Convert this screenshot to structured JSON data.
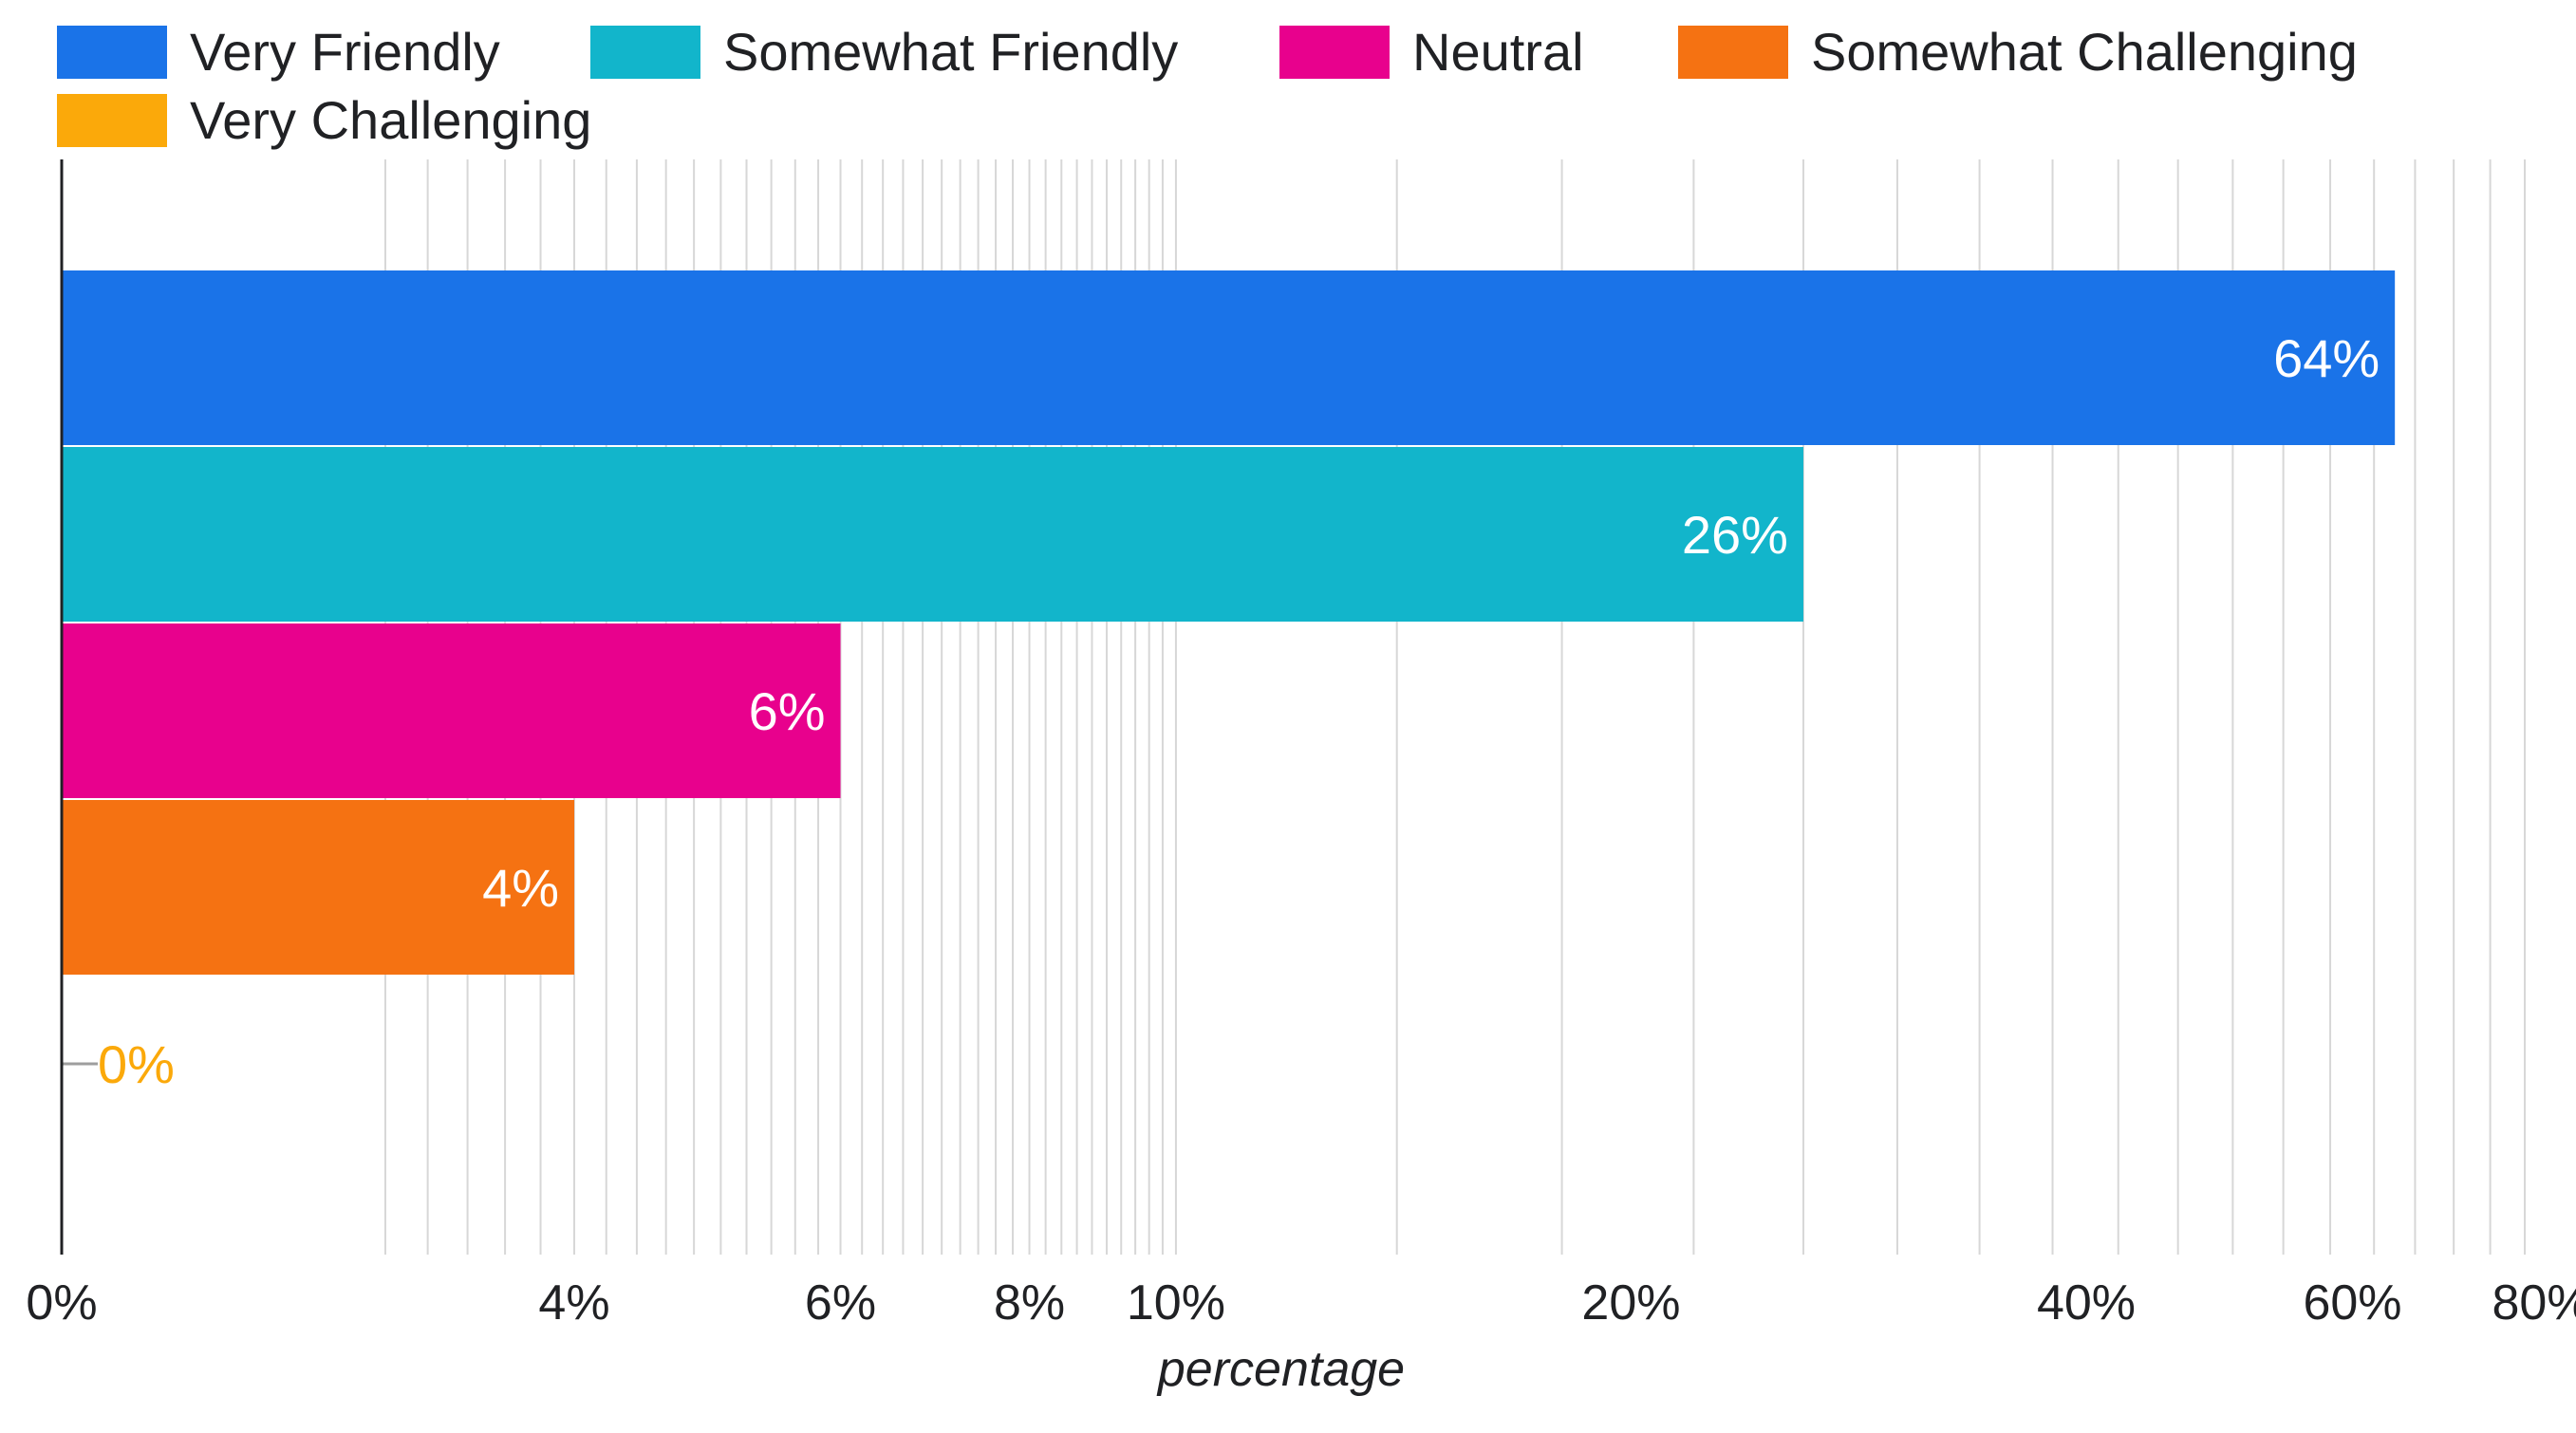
{
  "chart_data": {
    "type": "bar",
    "orientation": "horizontal",
    "x_scale": "log",
    "categories": [
      "Very Friendly",
      "Somewhat Friendly",
      "Neutral",
      "Somewhat Challenging",
      "Very Challenging"
    ],
    "values": [
      64,
      26,
      6,
      4,
      0
    ],
    "data_labels": [
      "64%",
      "26%",
      "6%",
      "4%",
      "0%"
    ],
    "colors": [
      "#1a73e8",
      "#12b5cb",
      "#e8018d",
      "#f57212",
      "#fba90a"
    ],
    "xlabel": "percentage",
    "ylabel": "",
    "xlim": [
      0,
      80
    ],
    "ticks": [
      0,
      4,
      6,
      8,
      10,
      20,
      40,
      60,
      80
    ],
    "tick_labels": [
      "0%",
      "4%",
      "6%",
      "8%",
      "10%",
      "20%",
      "40%",
      "60%",
      "80%"
    ],
    "minor_gridlines": [
      3,
      3.2,
      3.4,
      3.6,
      3.8,
      4,
      4.2,
      4.4,
      4.6,
      4.8,
      5,
      5.2,
      5.4,
      5.6,
      5.8,
      6,
      6.2,
      6.4,
      6.6,
      6.8,
      7,
      7.2,
      7.4,
      7.6,
      7.8,
      8,
      8.2,
      8.4,
      8.6,
      8.8,
      9,
      9.2,
      9.4,
      9.6,
      9.8,
      10,
      14,
      18,
      22,
      26,
      30,
      34,
      38,
      42,
      46,
      50,
      54,
      58,
      62,
      66,
      70,
      74,
      78
    ],
    "grid": true,
    "legend_position": "top",
    "legend": [
      "Very Friendly",
      "Somewhat Friendly",
      "Neutral",
      "Somewhat Challenging",
      "Very Challenging"
    ]
  }
}
